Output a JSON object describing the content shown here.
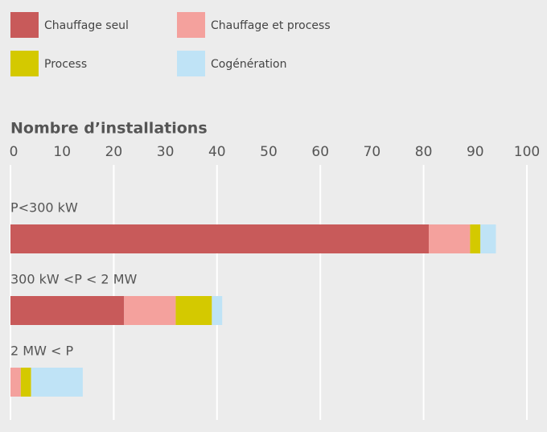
{
  "chart_data": {
    "type": "stacked_barh",
    "title": "Nombre d’installations",
    "categories": [
      "P<300 kW",
      "300 kW <P < 2 MW",
      "2 MW < P"
    ],
    "series": [
      {
        "name": "Chauffage seul",
        "color": "#c85a5a",
        "values": [
          81,
          22,
          0
        ]
      },
      {
        "name": "Chauffage et process",
        "color": "#f4a19d",
        "values": [
          8,
          10,
          2
        ]
      },
      {
        "name": "Process",
        "color": "#d4c900",
        "values": [
          2,
          7,
          2
        ]
      },
      {
        "name": "Cogénération",
        "color": "#bfe3f6",
        "values": [
          3,
          2,
          10
        ]
      }
    ],
    "xlim": [
      0,
      100
    ],
    "xticks": [
      0,
      10,
      20,
      30,
      40,
      50,
      60,
      70,
      80,
      90,
      100
    ],
    "xgrid": [
      0,
      20,
      40,
      60,
      80,
      100
    ],
    "legend": "top-left"
  }
}
